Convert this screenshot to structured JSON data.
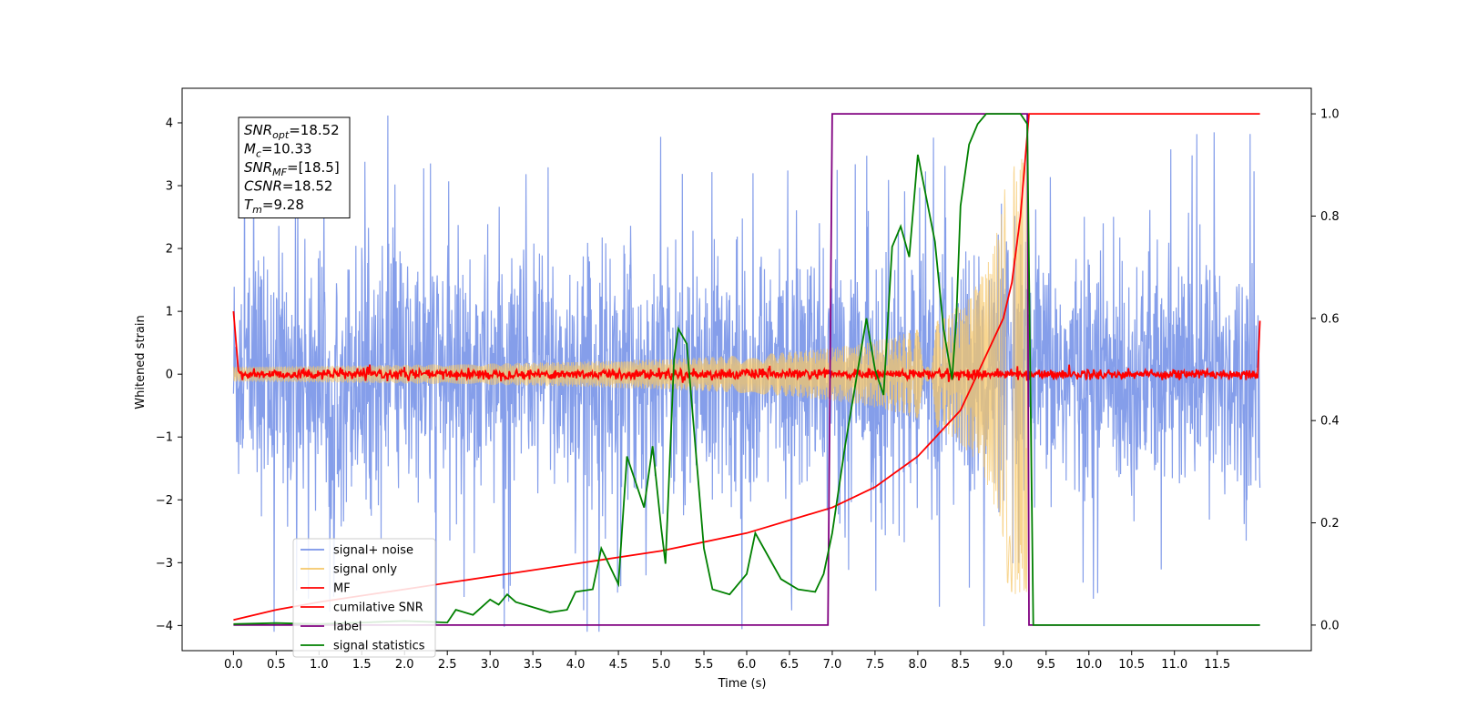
{
  "chart_data": {
    "type": "line",
    "xlabel": "Time (s)",
    "ylabel": "Whitened strain",
    "xlim": [
      -0.6,
      12.6
    ],
    "ylim": [
      -4.4,
      4.55
    ],
    "y2lim": [
      -0.05,
      1.05
    ],
    "x_ticks": [
      "0.0",
      "0.5",
      "1.0",
      "1.5",
      "2.0",
      "2.5",
      "3.0",
      "3.5",
      "4.0",
      "4.5",
      "5.0",
      "5.5",
      "6.0",
      "6.5",
      "7.0",
      "7.5",
      "8.0",
      "8.5",
      "9.0",
      "9.5",
      "10.0",
      "10.5",
      "11.0",
      "11.5"
    ],
    "y_ticks": [
      "4",
      "3",
      "2",
      "1",
      "0",
      "−1",
      "−2",
      "−3",
      "−4"
    ],
    "y2_ticks": [
      "1.0",
      "0.8",
      "0.6",
      "0.4",
      "0.2",
      "0.0"
    ],
    "annotation": [
      {
        "main": "SNR",
        "sub": "opt",
        "value": "=18.52"
      },
      {
        "main": "M",
        "sub": "c",
        "value": "=10.33"
      },
      {
        "main": "SNR",
        "sub": "MF",
        "value": "=[18.5]"
      },
      {
        "main": "CSNR",
        "sub": "",
        "value": "=18.52"
      },
      {
        "main": "T",
        "sub": "m",
        "value": "=9.28"
      }
    ],
    "legend_position": "lower-left",
    "series": [
      {
        "name": "signal+ noise",
        "color": "#7893e8",
        "axis": "left",
        "x_range": [
          0,
          12
        ],
        "amplitude": 1.0,
        "spike_max": 4.15
      },
      {
        "name": "signal only",
        "color": "#f5c76a",
        "axis": "left",
        "x_range": [
          0,
          9.28
        ],
        "chirp_end": 9.28
      },
      {
        "name": "MF",
        "color": "#ff0000",
        "axis": "left",
        "points": [
          [
            0,
            1.0
          ],
          [
            0.05,
            0.05
          ],
          [
            11.98,
            0.0
          ],
          [
            12.0,
            0.85
          ]
        ]
      },
      {
        "name": "cumilative SNR",
        "color": "#ff0000",
        "axis": "right",
        "points": [
          [
            0,
            0.01
          ],
          [
            0.5,
            0.03
          ],
          [
            1,
            0.045
          ],
          [
            2,
            0.07
          ],
          [
            3,
            0.095
          ],
          [
            4,
            0.12
          ],
          [
            5,
            0.145
          ],
          [
            6,
            0.18
          ],
          [
            7,
            0.23
          ],
          [
            7.5,
            0.27
          ],
          [
            8,
            0.33
          ],
          [
            8.5,
            0.42
          ],
          [
            9,
            0.6
          ],
          [
            9.1,
            0.67
          ],
          [
            9.2,
            0.8
          ],
          [
            9.25,
            0.9
          ],
          [
            9.3,
            1.0
          ],
          [
            12,
            1.0
          ]
        ]
      },
      {
        "name": "label",
        "color": "#800080",
        "axis": "right",
        "points": [
          [
            0,
            0
          ],
          [
            6.95,
            0
          ],
          [
            7.0,
            1.0
          ],
          [
            9.28,
            1.0
          ],
          [
            9.3,
            0
          ],
          [
            12,
            0
          ]
        ]
      },
      {
        "name": "signal statistics",
        "color": "#008000",
        "axis": "right",
        "points": [
          [
            0,
            0.002
          ],
          [
            0.5,
            0.004
          ],
          [
            1,
            0.002
          ],
          [
            1.5,
            0.005
          ],
          [
            2,
            0.008
          ],
          [
            2.5,
            0.005
          ],
          [
            2.6,
            0.03
          ],
          [
            2.8,
            0.02
          ],
          [
            3,
            0.05
          ],
          [
            3.1,
            0.04
          ],
          [
            3.2,
            0.06
          ],
          [
            3.3,
            0.045
          ],
          [
            3.5,
            0.035
          ],
          [
            3.7,
            0.025
          ],
          [
            3.9,
            0.03
          ],
          [
            4.0,
            0.065
          ],
          [
            4.2,
            0.07
          ],
          [
            4.3,
            0.15
          ],
          [
            4.5,
            0.08
          ],
          [
            4.6,
            0.33
          ],
          [
            4.8,
            0.23
          ],
          [
            4.9,
            0.35
          ],
          [
            5.0,
            0.19
          ],
          [
            5.05,
            0.12
          ],
          [
            5.15,
            0.52
          ],
          [
            5.2,
            0.58
          ],
          [
            5.3,
            0.55
          ],
          [
            5.5,
            0.15
          ],
          [
            5.6,
            0.07
          ],
          [
            5.8,
            0.06
          ],
          [
            6.0,
            0.1
          ],
          [
            6.1,
            0.18
          ],
          [
            6.3,
            0.12
          ],
          [
            6.4,
            0.09
          ],
          [
            6.6,
            0.07
          ],
          [
            6.8,
            0.065
          ],
          [
            6.9,
            0.1
          ],
          [
            7.0,
            0.18
          ],
          [
            7.15,
            0.35
          ],
          [
            7.3,
            0.5
          ],
          [
            7.4,
            0.6
          ],
          [
            7.5,
            0.5
          ],
          [
            7.6,
            0.45
          ],
          [
            7.7,
            0.74
          ],
          [
            7.8,
            0.78
          ],
          [
            7.9,
            0.72
          ],
          [
            8.0,
            0.92
          ],
          [
            8.2,
            0.75
          ],
          [
            8.3,
            0.58
          ],
          [
            8.4,
            0.48
          ],
          [
            8.45,
            0.6
          ],
          [
            8.5,
            0.82
          ],
          [
            8.6,
            0.94
          ],
          [
            8.7,
            0.98
          ],
          [
            8.8,
            1.0
          ],
          [
            9.2,
            1.0
          ],
          [
            9.28,
            0.98
          ],
          [
            9.35,
            0
          ],
          [
            12,
            0
          ]
        ]
      }
    ]
  }
}
